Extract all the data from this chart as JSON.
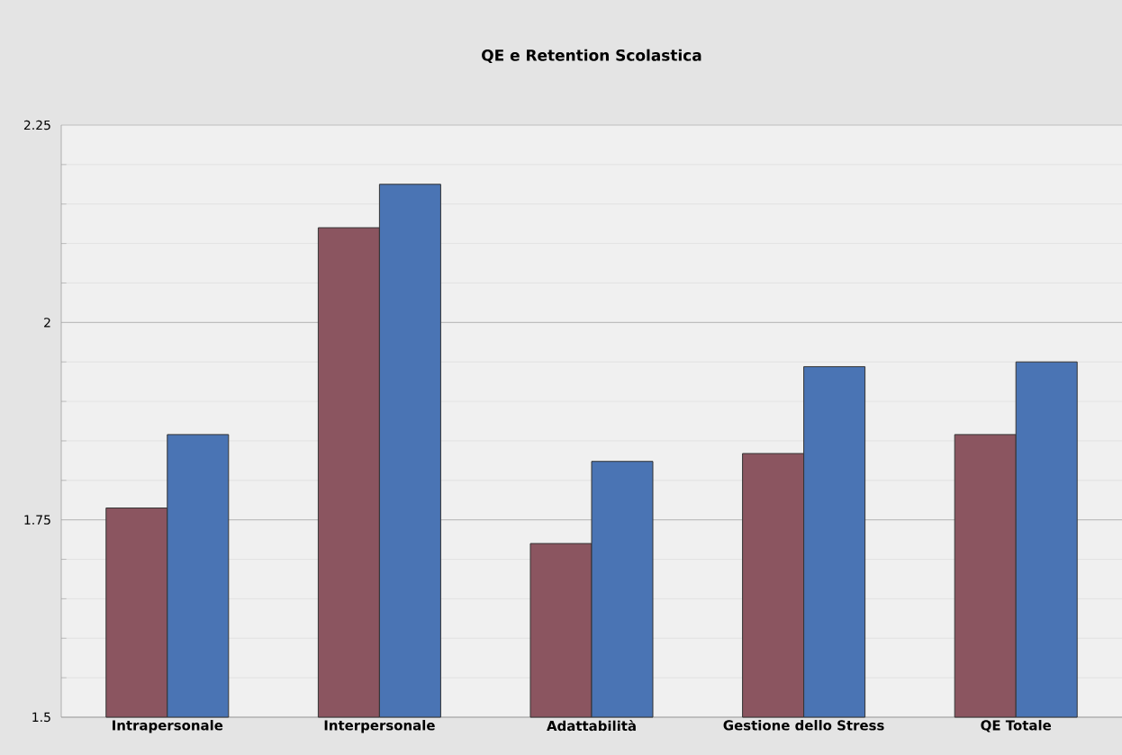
{
  "chart_data": {
    "type": "bar",
    "title": "QE e Retention Scolastica",
    "categories": [
      "Intrapersonale",
      "Interpersonale",
      "Adattabilità",
      "Gestione dello Stress",
      "QE Totale"
    ],
    "series": [
      {
        "color": "#8b5560",
        "values": [
          1.765,
          2.12,
          1.72,
          1.834,
          1.858
        ]
      },
      {
        "color": "#4a74b4",
        "values": [
          1.858,
          2.175,
          1.824,
          1.944,
          1.95
        ]
      }
    ],
    "ylim": [
      1.5,
      2.25
    ],
    "yticks": [
      1.5,
      1.75,
      2,
      2.25
    ],
    "grid": "y"
  }
}
